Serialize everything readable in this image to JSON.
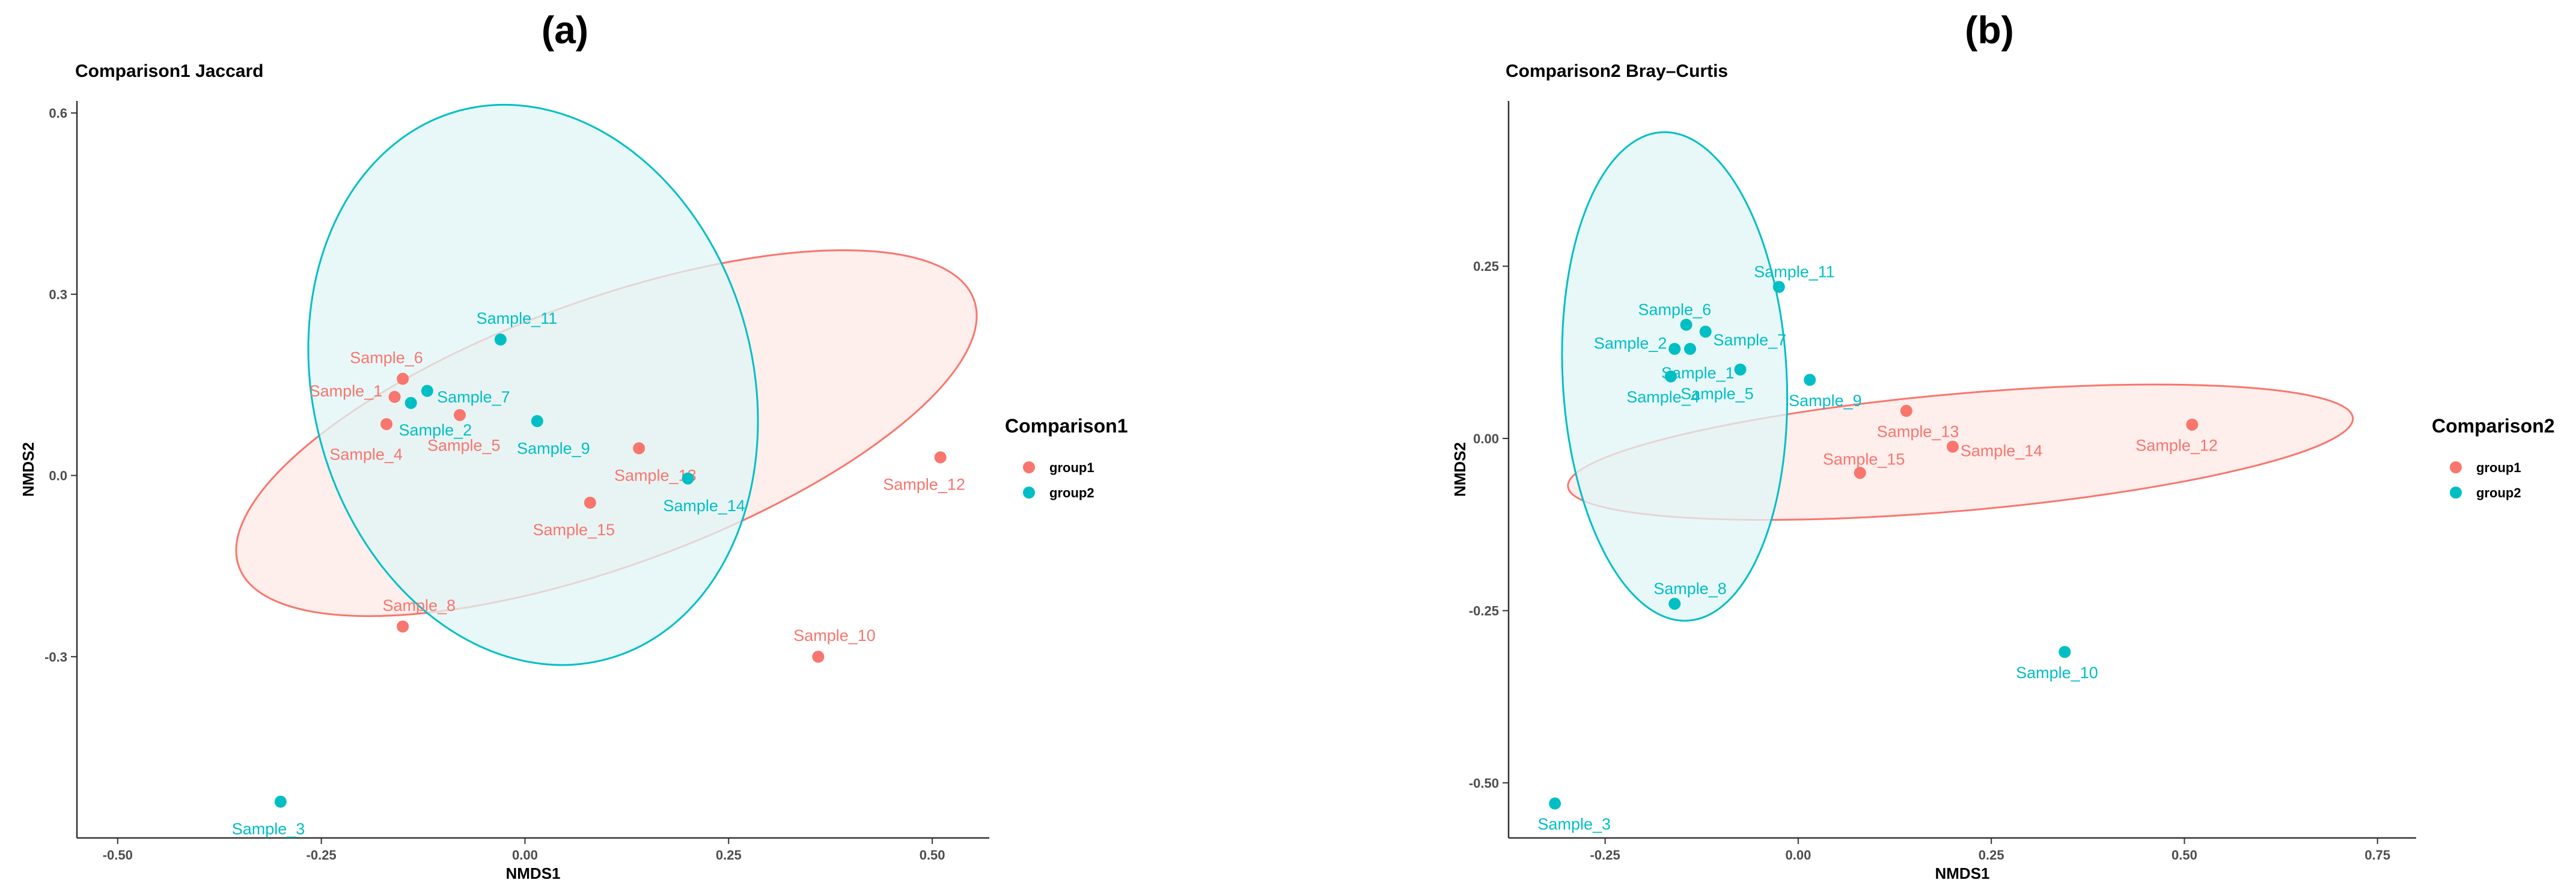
{
  "chart_data": [
    {
      "type": "scatter",
      "panel_label": "(a)",
      "title": "Comparison1 Jaccard",
      "xlabel": "NMDS1",
      "ylabel": "NMDS2",
      "xlim": [
        -0.55,
        0.57
      ],
      "ylim": [
        -0.6,
        0.62
      ],
      "xticks": [
        -0.5,
        -0.25,
        0,
        0.25,
        0.5
      ],
      "xtick_labels": [
        "-0.50",
        "-0.25",
        "0.00",
        "0.25",
        "0.50"
      ],
      "yticks": [
        -0.3,
        0,
        0.3,
        0.6
      ],
      "ytick_labels": [
        "-0.3",
        "0.0",
        "0.3",
        "0.6"
      ],
      "legend_title": "Comparison1",
      "groups": [
        {
          "name": "group1",
          "color": "#F8766D",
          "fill": "#FDE8E6"
        },
        {
          "name": "group2",
          "color": "#00BFC4",
          "fill": "#E0F6F7"
        }
      ],
      "ellipses": [
        {
          "group": "group1",
          "cx": 0.1,
          "cy": 0.07,
          "rx": 0.48,
          "ry": 0.22,
          "angle_deg": -20
        },
        {
          "group": "group2",
          "cx": 0.01,
          "cy": 0.15,
          "rx": 0.27,
          "ry": 0.47,
          "angle_deg": -15
        }
      ],
      "points": [
        {
          "label": "Sample_1",
          "x": -0.16,
          "y": 0.13,
          "group": "group1",
          "anchor": "end",
          "dx": -0.015,
          "dy": 0.01
        },
        {
          "label": "Sample_4",
          "x": -0.17,
          "y": 0.085,
          "group": "group1",
          "anchor": "middle",
          "dx": -0.025,
          "dy": -0.05
        },
        {
          "label": "Sample_5",
          "x": -0.08,
          "y": 0.1,
          "group": "group1",
          "anchor": "middle",
          "dx": 0.005,
          "dy": -0.05
        },
        {
          "label": "Sample_6",
          "x": -0.15,
          "y": 0.16,
          "group": "group1",
          "anchor": "middle",
          "dx": -0.02,
          "dy": 0.035
        },
        {
          "label": "Sample_8",
          "x": -0.15,
          "y": -0.25,
          "group": "group1",
          "anchor": "middle",
          "dx": 0.02,
          "dy": 0.035
        },
        {
          "label": "Sample_10",
          "x": 0.36,
          "y": -0.3,
          "group": "group1",
          "anchor": "middle",
          "dx": 0.02,
          "dy": 0.035
        },
        {
          "label": "Sample_12",
          "x": 0.51,
          "y": 0.03,
          "group": "group1",
          "anchor": "middle",
          "dx": -0.02,
          "dy": -0.045
        },
        {
          "label": "Sample_13",
          "x": 0.14,
          "y": 0.045,
          "group": "group1",
          "anchor": "middle",
          "dx": 0.02,
          "dy": -0.045
        },
        {
          "label": "Sample_15",
          "x": 0.08,
          "y": -0.045,
          "group": "group1",
          "anchor": "middle",
          "dx": -0.02,
          "dy": -0.045
        },
        {
          "label": "Sample_2",
          "x": -0.14,
          "y": 0.12,
          "group": "group2",
          "anchor": "middle",
          "dx": 0.03,
          "dy": -0.045
        },
        {
          "label": "Sample_3",
          "x": -0.3,
          "y": -0.54,
          "group": "group2",
          "anchor": "middle",
          "dx": -0.015,
          "dy": -0.045
        },
        {
          "label": "Sample_7",
          "x": -0.12,
          "y": 0.14,
          "group": "group2",
          "anchor": "start",
          "dx": 0.012,
          "dy": -0.01
        },
        {
          "label": "Sample_9",
          "x": 0.015,
          "y": 0.09,
          "group": "group2",
          "anchor": "middle",
          "dx": 0.02,
          "dy": -0.045
        },
        {
          "label": "Sample_11",
          "x": -0.03,
          "y": 0.225,
          "group": "group2",
          "anchor": "middle",
          "dx": 0.02,
          "dy": 0.035
        },
        {
          "label": "Sample_14",
          "x": 0.2,
          "y": -0.005,
          "group": "group2",
          "anchor": "middle",
          "dx": 0.02,
          "dy": -0.045
        }
      ]
    },
    {
      "type": "scatter",
      "panel_label": "(b)",
      "title": "Comparison2 Bray–Curtis",
      "xlabel": "NMDS1",
      "ylabel": "NMDS2",
      "xlim": [
        -0.375,
        0.8
      ],
      "ylim": [
        -0.58,
        0.49
      ],
      "xticks": [
        -0.25,
        0,
        0.25,
        0.5,
        0.75
      ],
      "xtick_labels": [
        "-0.25",
        "0.00",
        "0.25",
        "0.50",
        "0.75"
      ],
      "yticks": [
        -0.5,
        -0.25,
        0,
        0.25
      ],
      "ytick_labels": [
        "-0.50",
        "-0.25",
        "0.00",
        "0.25"
      ],
      "legend_title": "Comparison2",
      "groups": [
        {
          "name": "group1",
          "color": "#F8766D",
          "fill": "#FDE8E6"
        },
        {
          "name": "group2",
          "color": "#00BFC4",
          "fill": "#E0F6F7"
        }
      ],
      "ellipses": [
        {
          "group": "group1",
          "cx": 0.21,
          "cy": -0.02,
          "rx": 0.51,
          "ry": 0.085,
          "angle_deg": -5
        },
        {
          "group": "group2",
          "cx": -0.16,
          "cy": 0.09,
          "rx": 0.145,
          "ry": 0.355,
          "angle_deg": -3
        }
      ],
      "points": [
        {
          "label": "Sample_12",
          "x": 0.51,
          "y": 0.02,
          "group": "group1",
          "anchor": "middle",
          "dx": -0.02,
          "dy": -0.03
        },
        {
          "label": "Sample_13",
          "x": 0.14,
          "y": 0.04,
          "group": "group1",
          "anchor": "middle",
          "dx": 0.015,
          "dy": -0.03
        },
        {
          "label": "Sample_14",
          "x": 0.2,
          "y": -0.012,
          "group": "group1",
          "anchor": "start",
          "dx": 0.01,
          "dy": -0.006
        },
        {
          "label": "Sample_15",
          "x": 0.08,
          "y": -0.05,
          "group": "group1",
          "anchor": "middle",
          "dx": 0.005,
          "dy": 0.02
        },
        {
          "label": "Sample_1",
          "x": -0.14,
          "y": 0.13,
          "group": "group2",
          "anchor": "middle",
          "dx": 0.01,
          "dy": -0.035
        },
        {
          "label": "Sample_2",
          "x": -0.16,
          "y": 0.13,
          "group": "group2",
          "anchor": "end",
          "dx": -0.01,
          "dy": 0.008
        },
        {
          "label": "Sample_3",
          "x": -0.315,
          "y": -0.53,
          "group": "group2",
          "anchor": "middle",
          "dx": 0.025,
          "dy": -0.03
        },
        {
          "label": "Sample_4",
          "x": -0.165,
          "y": 0.09,
          "group": "group2",
          "anchor": "middle",
          "dx": -0.01,
          "dy": -0.03
        },
        {
          "label": "Sample_5",
          "x": -0.075,
          "y": 0.1,
          "group": "group2",
          "anchor": "middle",
          "dx": -0.03,
          "dy": -0.035
        },
        {
          "label": "Sample_6",
          "x": -0.145,
          "y": 0.165,
          "group": "group2",
          "anchor": "middle",
          "dx": -0.015,
          "dy": 0.022
        },
        {
          "label": "Sample_7",
          "x": -0.12,
          "y": 0.155,
          "group": "group2",
          "anchor": "start",
          "dx": 0.01,
          "dy": -0.012
        },
        {
          "label": "Sample_8",
          "x": -0.16,
          "y": -0.24,
          "group": "group2",
          "anchor": "middle",
          "dx": 0.02,
          "dy": 0.022
        },
        {
          "label": "Sample_9",
          "x": 0.015,
          "y": 0.085,
          "group": "group2",
          "anchor": "middle",
          "dx": 0.02,
          "dy": -0.03
        },
        {
          "label": "Sample_10",
          "x": 0.345,
          "y": -0.31,
          "group": "group2",
          "anchor": "middle",
          "dx": -0.01,
          "dy": -0.03
        },
        {
          "label": "Sample_11",
          "x": -0.025,
          "y": 0.22,
          "group": "group2",
          "anchor": "middle",
          "dx": 0.02,
          "dy": 0.022
        }
      ]
    }
  ]
}
